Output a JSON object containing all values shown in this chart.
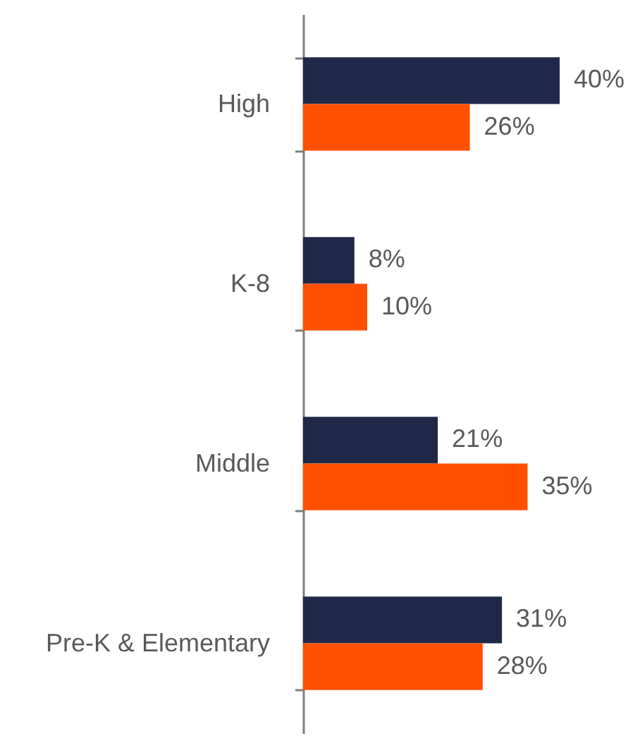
{
  "chart_data": {
    "type": "bar",
    "orientation": "horizontal",
    "categories": [
      "High",
      "K-8",
      "Middle",
      "Pre-K & Elementary"
    ],
    "series": [
      {
        "color": "#20284a",
        "values": [
          40,
          8,
          21,
          31
        ],
        "value_labels": [
          "40%",
          "8%",
          "21%",
          "31%"
        ]
      },
      {
        "color": "#ff5000",
        "values": [
          26,
          10,
          35,
          28
        ],
        "value_labels": [
          "26%",
          "10%",
          "35%",
          "28%"
        ]
      }
    ],
    "tick_labels": "y"
  }
}
